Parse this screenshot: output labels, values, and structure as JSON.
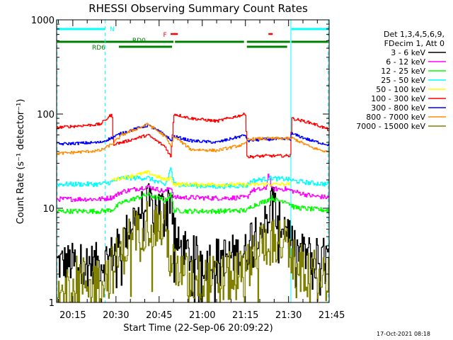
{
  "chart_data": {
    "type": "line",
    "title": "RHESSI Observing Summary Count Rates",
    "xlabel": "Start Time (22-Sep-06 20:09:22)",
    "ylabel": "Count Rate (s⁻¹ detector⁻¹)",
    "ylim": [
      1,
      1000
    ],
    "yscale": "log",
    "xlim_min": [
      9.37,
      104.1
    ],
    "x_unit": "minutes after 20:00 UT",
    "x_ticks": [
      {
        "t": 15,
        "label": "20:15"
      },
      {
        "t": 30,
        "label": "20:30"
      },
      {
        "t": 45,
        "label": "20:45"
      },
      {
        "t": 60,
        "label": "21:00"
      },
      {
        "t": 75,
        "label": "21:15"
      },
      {
        "t": 90,
        "label": "21:30"
      },
      {
        "t": 105,
        "label": "21:45"
      }
    ],
    "y_ticks": [
      {
        "v": 1,
        "label": "1"
      },
      {
        "v": 10,
        "label": "10"
      },
      {
        "v": 100,
        "label": "100"
      },
      {
        "v": 1000,
        "label": "1000"
      }
    ],
    "legend_header": [
      "Det 1,3,4,5,6,9,",
      "FDecim 1, Att 0"
    ],
    "legend_position": "right",
    "series": [
      {
        "name": "3 - 6 keV",
        "color": "#000000",
        "noise": 0.45,
        "points": [
          [
            9.4,
            2.6
          ],
          [
            24.5,
            2.6
          ],
          [
            28.5,
            3.2
          ],
          [
            32,
            4.2
          ],
          [
            36,
            8
          ],
          [
            41,
            11
          ],
          [
            47,
            10
          ],
          [
            49,
            14
          ],
          [
            51,
            4
          ],
          [
            56,
            3.1
          ],
          [
            62,
            2.9
          ],
          [
            70,
            3.2
          ],
          [
            75.5,
            3.4
          ],
          [
            77,
            5.5
          ],
          [
            82,
            7
          ],
          [
            84.5,
            13
          ],
          [
            86,
            7
          ],
          [
            89,
            7
          ],
          [
            92,
            3.5
          ],
          [
            98,
            3.1
          ],
          [
            104.1,
            2.9
          ]
        ]
      },
      {
        "name": "6 - 12 keV",
        "color": "#ff00ff",
        "noise": 0.05,
        "points": [
          [
            9.4,
            12.5
          ],
          [
            24.5,
            12.5
          ],
          [
            28.5,
            13
          ],
          [
            32,
            15
          ],
          [
            41,
            17
          ],
          [
            47,
            15
          ],
          [
            49,
            17
          ],
          [
            50,
            13
          ],
          [
            56,
            13
          ],
          [
            65,
            12.8
          ],
          [
            75.5,
            13
          ],
          [
            77,
            15.5
          ],
          [
            82,
            16
          ],
          [
            83,
            24
          ],
          [
            84,
            16
          ],
          [
            86,
            16
          ],
          [
            89,
            16
          ],
          [
            92,
            15
          ],
          [
            98,
            13.5
          ],
          [
            104.1,
            13
          ]
        ]
      },
      {
        "name": "12 - 25 keV",
        "color": "#00ff00",
        "noise": 0.05,
        "points": [
          [
            9.4,
            9.3
          ],
          [
            24.5,
            9.3
          ],
          [
            28.5,
            9.6
          ],
          [
            32,
            11.5
          ],
          [
            41,
            14
          ],
          [
            47,
            12
          ],
          [
            49,
            14
          ],
          [
            50,
            9.5
          ],
          [
            56,
            9.3
          ],
          [
            65,
            9.3
          ],
          [
            75.5,
            9.5
          ],
          [
            77,
            10.5
          ],
          [
            82,
            12
          ],
          [
            84,
            13
          ],
          [
            86,
            12
          ],
          [
            89,
            12
          ],
          [
            92,
            10.2
          ],
          [
            98,
            9.8
          ],
          [
            104.1,
            9.5
          ]
        ]
      },
      {
        "name": "25 - 50 keV",
        "color": "#00ffff",
        "noise": 0.05,
        "points": [
          [
            9.4,
            18
          ],
          [
            24.5,
            18
          ],
          [
            28.5,
            19
          ],
          [
            32,
            21
          ],
          [
            41,
            21
          ],
          [
            47,
            17.5
          ],
          [
            49,
            27
          ],
          [
            50,
            18
          ],
          [
            56,
            17.5
          ],
          [
            65,
            17
          ],
          [
            75.5,
            17.5
          ],
          [
            77,
            19.5
          ],
          [
            82,
            20.5
          ],
          [
            84,
            21
          ],
          [
            86,
            20.5
          ],
          [
            89,
            20.5
          ],
          [
            92,
            19.5
          ],
          [
            98,
            18.5
          ],
          [
            104.1,
            18
          ]
        ]
      },
      {
        "name": "50 - 100 keV",
        "color": "#ffff00",
        "noise": 0.04,
        "points": [
          [
            28.5,
            20
          ],
          [
            32,
            21
          ],
          [
            41,
            24
          ],
          [
            47,
            20
          ],
          [
            49,
            21
          ],
          [
            50,
            18
          ],
          [
            76,
            17.8
          ],
          [
            82,
            18
          ],
          [
            89,
            18
          ],
          [
            90.5,
            18
          ]
        ]
      },
      {
        "name": "100 - 300 keV",
        "color": "#ff0000",
        "noise": 0.03,
        "points": [
          [
            9.4,
            72
          ],
          [
            24.5,
            78
          ],
          [
            28.5,
            100
          ],
          [
            29,
            48
          ],
          [
            32,
            50
          ],
          [
            41,
            60
          ],
          [
            47,
            45
          ],
          [
            49,
            35
          ],
          [
            50,
            100
          ],
          [
            56,
            90
          ],
          [
            65,
            84
          ],
          [
            75,
            100
          ],
          [
            75.5,
            35
          ],
          [
            82,
            36
          ],
          [
            89,
            36
          ],
          [
            90.5,
            36
          ],
          [
            91,
            90
          ],
          [
            98,
            80
          ],
          [
            104.1,
            68
          ]
        ]
      },
      {
        "name": "300 - 800 keV",
        "color": "#0000ff",
        "noise": 0.03,
        "points": [
          [
            9.4,
            48
          ],
          [
            24.5,
            50
          ],
          [
            28.5,
            56
          ],
          [
            32,
            63
          ],
          [
            41,
            76
          ],
          [
            47,
            60
          ],
          [
            49,
            52
          ],
          [
            50,
            58
          ],
          [
            56,
            52
          ],
          [
            65,
            50
          ],
          [
            75,
            60
          ],
          [
            75.5,
            52
          ],
          [
            82,
            54
          ],
          [
            89,
            54
          ],
          [
            90.5,
            54
          ],
          [
            91,
            62
          ],
          [
            98,
            52
          ],
          [
            104.1,
            47
          ]
        ]
      },
      {
        "name": "800 - 7000 keV",
        "color": "#ff8c00",
        "noise": 0.03,
        "points": [
          [
            9.4,
            38
          ],
          [
            24.5,
            41
          ],
          [
            28.5,
            48
          ],
          [
            32,
            60
          ],
          [
            41,
            78
          ],
          [
            47,
            58
          ],
          [
            49,
            45
          ],
          [
            50,
            58
          ],
          [
            56,
            42
          ],
          [
            65,
            41
          ],
          [
            75,
            48
          ],
          [
            75.5,
            54
          ],
          [
            82,
            55
          ],
          [
            89,
            55
          ],
          [
            90.5,
            55
          ],
          [
            91,
            56
          ],
          [
            98,
            44
          ],
          [
            104.1,
            39
          ]
        ]
      },
      {
        "name": "7000 - 15000 keV",
        "color": "#808000",
        "noise": 0.55,
        "points": [
          [
            9.4,
            1.7
          ],
          [
            24.5,
            1.7
          ],
          [
            28.5,
            2.2
          ],
          [
            32,
            3.4
          ],
          [
            36,
            5.5
          ],
          [
            41,
            7.2
          ],
          [
            47,
            6
          ],
          [
            49,
            2.8
          ],
          [
            51,
            2
          ],
          [
            56,
            1.8
          ],
          [
            65,
            1.7
          ],
          [
            75.5,
            2.1
          ],
          [
            77,
            3.5
          ],
          [
            82,
            4.5
          ],
          [
            86,
            4.5
          ],
          [
            89,
            4.2
          ],
          [
            92,
            2.4
          ],
          [
            98,
            2
          ],
          [
            104.1,
            1.8
          ]
        ]
      }
    ],
    "state_bars": [
      {
        "label": "N",
        "color": "#00ffff",
        "row": "top",
        "segments": [
          [
            9.4,
            26.2
          ],
          [
            91,
            104.1
          ]
        ]
      },
      {
        "label": "F",
        "color": "#ff0000",
        "row": "flag",
        "segments": [
          [
            49,
            51.5
          ],
          [
            83,
            84.5
          ]
        ]
      },
      {
        "label": "RD0",
        "color": "#008000",
        "row": "mid",
        "segments": [
          [
            9.4,
            50
          ],
          [
            50.5,
            74.5
          ],
          [
            75.5,
            90.5
          ],
          [
            91,
            104.1
          ]
        ]
      },
      {
        "label": "RD6",
        "color": "#008000",
        "row": "low",
        "segments": [
          [
            31,
            49.5
          ],
          [
            75.5,
            89.5
          ]
        ]
      }
    ],
    "night_markers": [
      {
        "t": 9.5,
        "color": "#00ffff"
      },
      {
        "t": 26.2,
        "color": "#00ffff"
      },
      {
        "t": 90.8,
        "color": "#00ffff"
      },
      {
        "t": 103.8,
        "color": "#00ffff"
      }
    ]
  },
  "footer_timestamp": "17-Oct-2021 08:18"
}
